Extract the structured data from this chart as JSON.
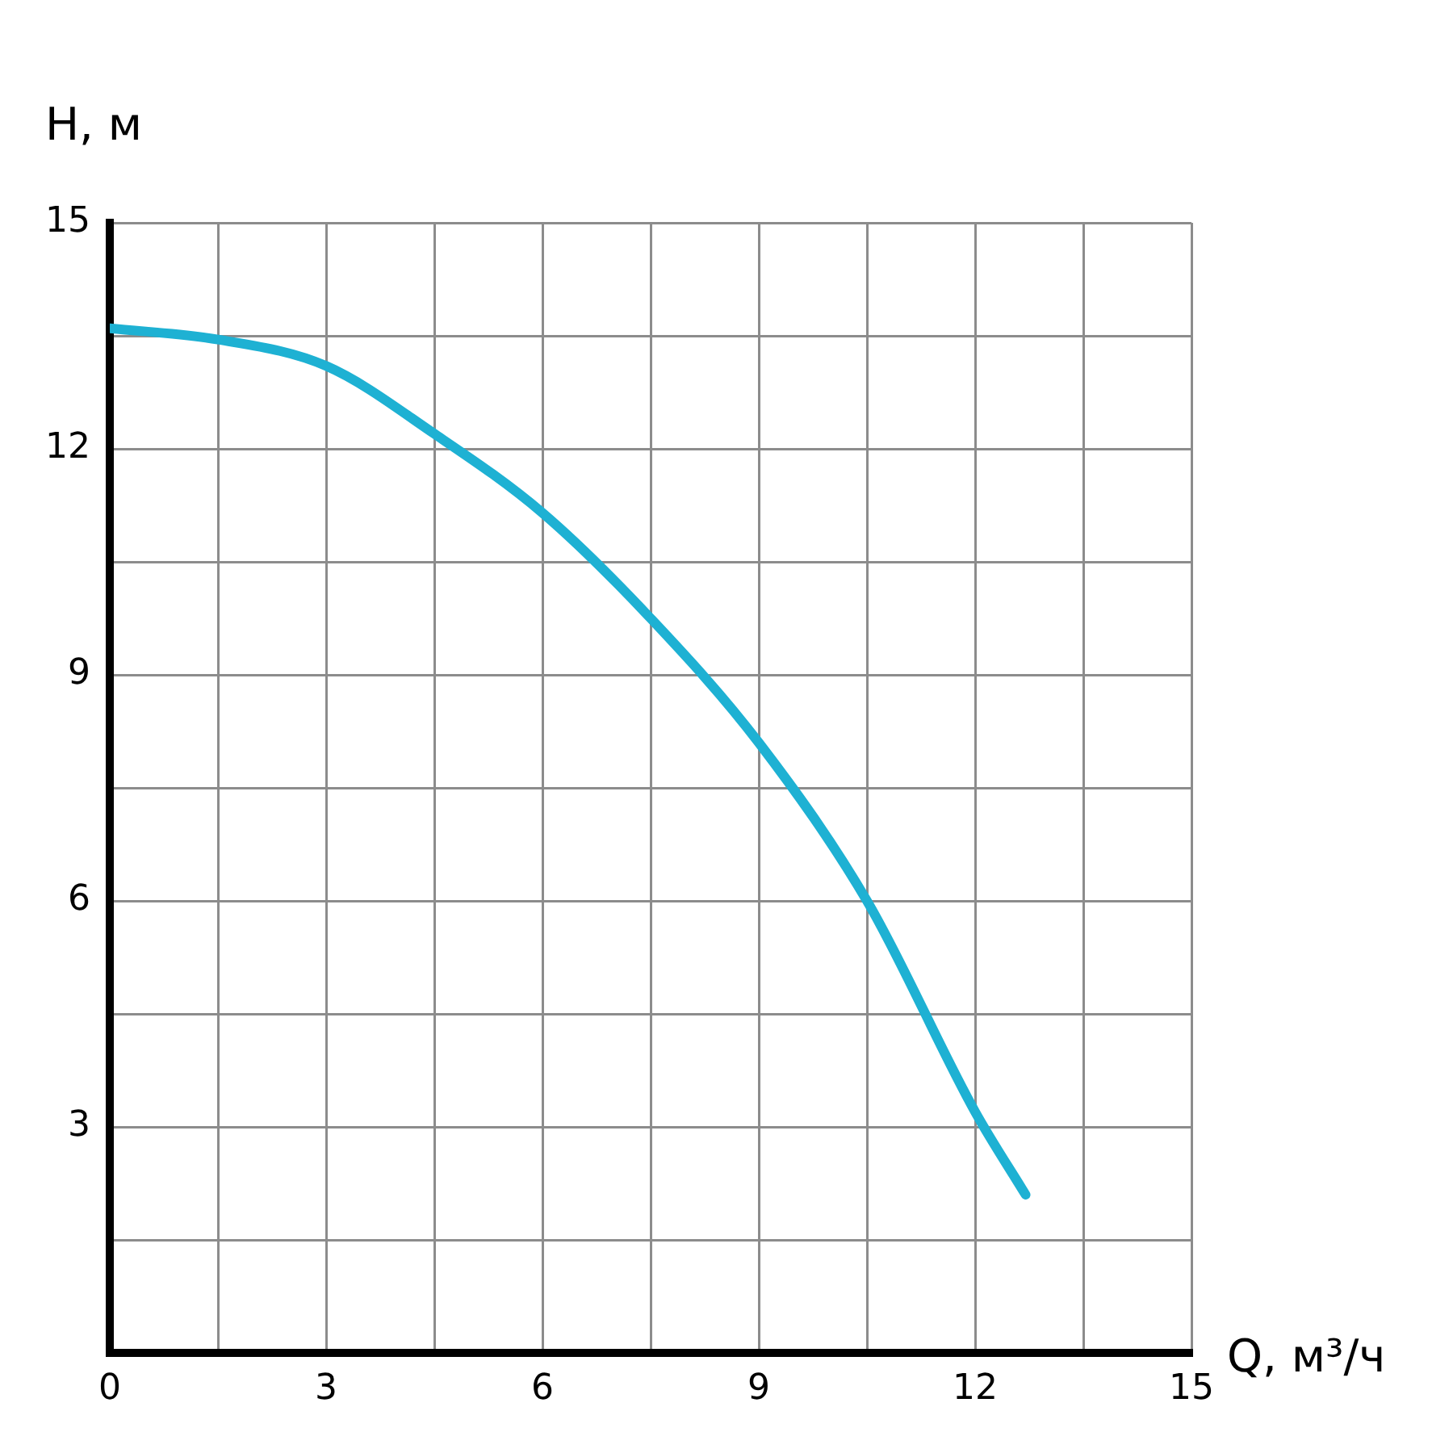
{
  "chart_data": {
    "type": "line",
    "xlabel": "Q, м³/ч",
    "ylabel": "H, м",
    "x": [
      0,
      1.5,
      3,
      4.5,
      6,
      7.5,
      9,
      10.5,
      12,
      12.7
    ],
    "series": [
      {
        "color": "#1eb1d3",
        "values": [
          13.6,
          13.45,
          13.1,
          12.2,
          11.15,
          9.75,
          8.1,
          6.0,
          3.2,
          2.1
        ]
      }
    ],
    "xlim": [
      0,
      15
    ],
    "ylim": [
      0,
      15
    ],
    "xticks": [
      0,
      {
        "value": 1.5,
        "label": null
      },
      3,
      {
        "value": 4.5,
        "label": null
      },
      6,
      {
        "value": 7.5,
        "label": null
      },
      9,
      {
        "value": 10.5,
        "label": null
      },
      12,
      {
        "value": 13.5,
        "label": null
      },
      15
    ],
    "yticks": [
      {
        "value": 0,
        "label": null
      },
      {
        "value": 1.5,
        "label": null
      },
      3,
      {
        "value": 4.5,
        "label": null
      },
      6,
      {
        "value": 7.5,
        "label": null
      },
      9,
      {
        "value": 10.5,
        "label": null
      },
      12,
      {
        "value": 13.5,
        "label": null
      },
      15
    ],
    "grid": true,
    "legend": false,
    "marker": "none",
    "line_style": "solid"
  }
}
